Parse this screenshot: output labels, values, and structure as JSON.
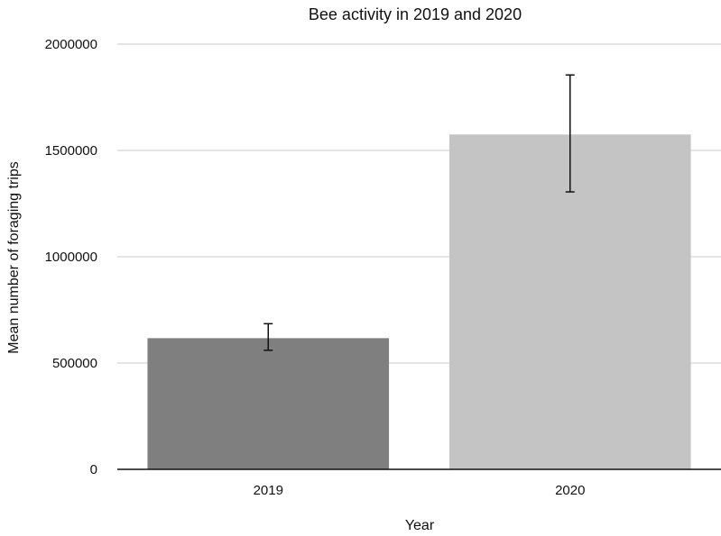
{
  "chart_data": {
    "type": "bar",
    "title": "Bee activity in 2019 and 2020",
    "xlabel": "Year",
    "ylabel": "Mean number of foraging trips",
    "categories": [
      "2019",
      "2020"
    ],
    "values": [
      617000,
      1575000
    ],
    "error_low": [
      560000,
      1305000
    ],
    "error_high": [
      685000,
      1855000
    ],
    "ylim": [
      0,
      2000000
    ],
    "yticks": [
      "0",
      "500000",
      "1000000",
      "1500000",
      "2000000"
    ],
    "grid": true,
    "legend": "none",
    "colors": [
      "#7f7f7f",
      "#c4c4c4"
    ]
  }
}
